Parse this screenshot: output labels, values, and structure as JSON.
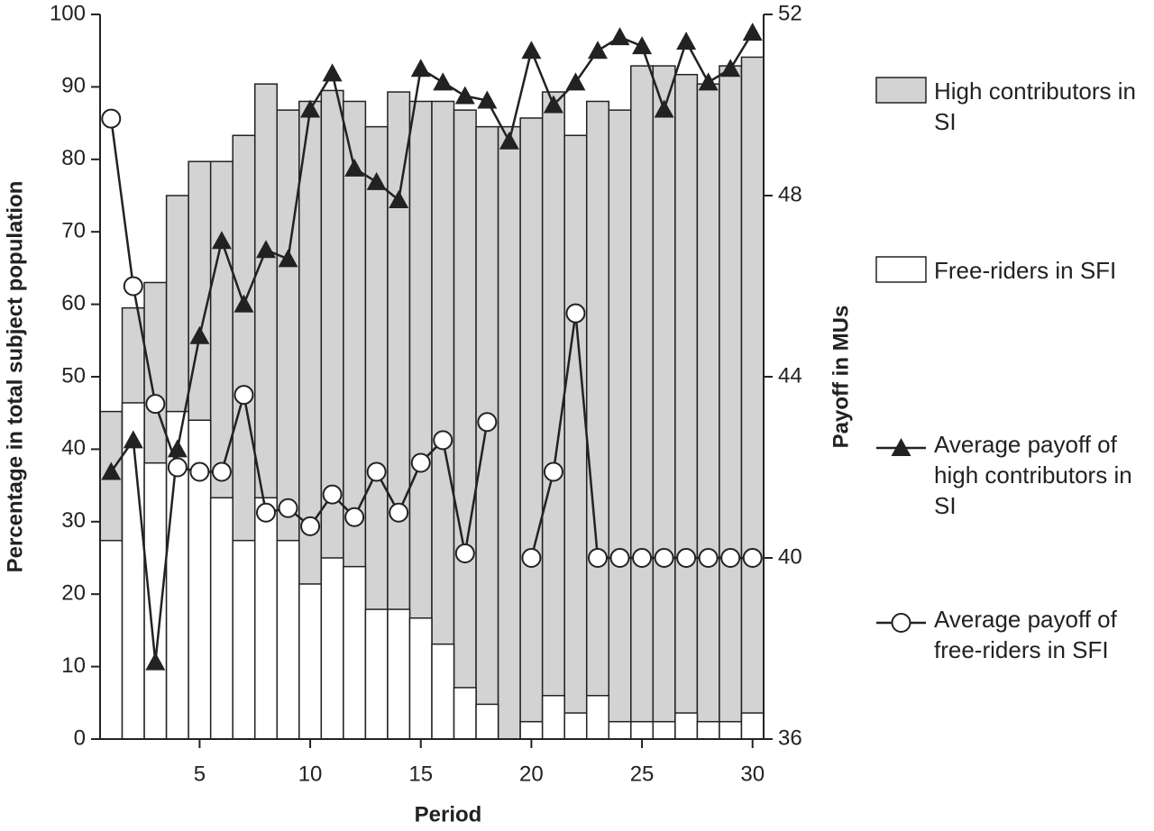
{
  "chart_data": {
    "type": "combo",
    "xlabel": "Period",
    "ylabel": "Percentage in total subject population",
    "y2label": "Payoff in MUs",
    "x": [
      1,
      2,
      3,
      4,
      5,
      6,
      7,
      8,
      9,
      10,
      11,
      12,
      13,
      14,
      15,
      16,
      17,
      18,
      19,
      20,
      21,
      22,
      23,
      24,
      25,
      26,
      27,
      28,
      29,
      30
    ],
    "xlim": [
      0.5,
      30.5
    ],
    "xticks": [
      5,
      10,
      15,
      20,
      25,
      30
    ],
    "ylim": [
      0,
      100
    ],
    "yticks": [
      0,
      10,
      20,
      30,
      40,
      50,
      60,
      70,
      80,
      90,
      100
    ],
    "y2lim": [
      36,
      52
    ],
    "y2ticks": [
      36,
      40,
      44,
      48,
      52
    ],
    "series": [
      {
        "name": "High contributors in SI",
        "kind": "bar",
        "axis": "y",
        "color": "#d3d3d3",
        "values": [
          45.2,
          59.5,
          63,
          75,
          79.7,
          79.7,
          83.3,
          90.4,
          86.8,
          88,
          89.5,
          88,
          84.5,
          89.3,
          88,
          88,
          86.8,
          84.5,
          84.5,
          85.7,
          89.3,
          83.3,
          88,
          86.8,
          92.9,
          92.9,
          91.7,
          90.4,
          92.9,
          94.1
        ]
      },
      {
        "name": "Free-riders in SFI",
        "kind": "bar",
        "axis": "y",
        "color": "#ffffff",
        "values": [
          27.4,
          46.4,
          38.1,
          45.2,
          44,
          33.3,
          27.4,
          33.3,
          27.4,
          21.4,
          25,
          23.8,
          17.9,
          17.9,
          16.7,
          13.1,
          7.1,
          4.8,
          0,
          2.4,
          6,
          3.6,
          6,
          2.4,
          2.4,
          2.4,
          3.6,
          2.4,
          2.4,
          3.6
        ]
      },
      {
        "name": "Average payoff of high contributors in SI",
        "kind": "line",
        "marker": "triangle",
        "axis": "y2",
        "color": "#222222",
        "values": [
          41.9,
          42.6,
          37.7,
          42.4,
          44.9,
          47.0,
          45.6,
          46.8,
          46.6,
          49.9,
          50.7,
          48.6,
          48.3,
          47.9,
          50.8,
          50.5,
          50.2,
          50.1,
          49.2,
          51.2,
          50.0,
          50.5,
          51.2,
          51.5,
          51.3,
          49.9,
          51.4,
          50.5,
          50.8,
          51.6
        ]
      },
      {
        "name": "Average payoff of free-riders in SFI",
        "kind": "line",
        "marker": "circle",
        "axis": "y2",
        "color": "#222222",
        "values": [
          49.7,
          46.0,
          43.4,
          42.0,
          41.9,
          41.9,
          43.6,
          41.0,
          41.1,
          40.7,
          41.4,
          40.9,
          41.9,
          41.0,
          42.1,
          42.6,
          40.1,
          43.0,
          null,
          40.0,
          41.9,
          45.4,
          40,
          40,
          40,
          40,
          40,
          40,
          40,
          40
        ]
      }
    ]
  }
}
